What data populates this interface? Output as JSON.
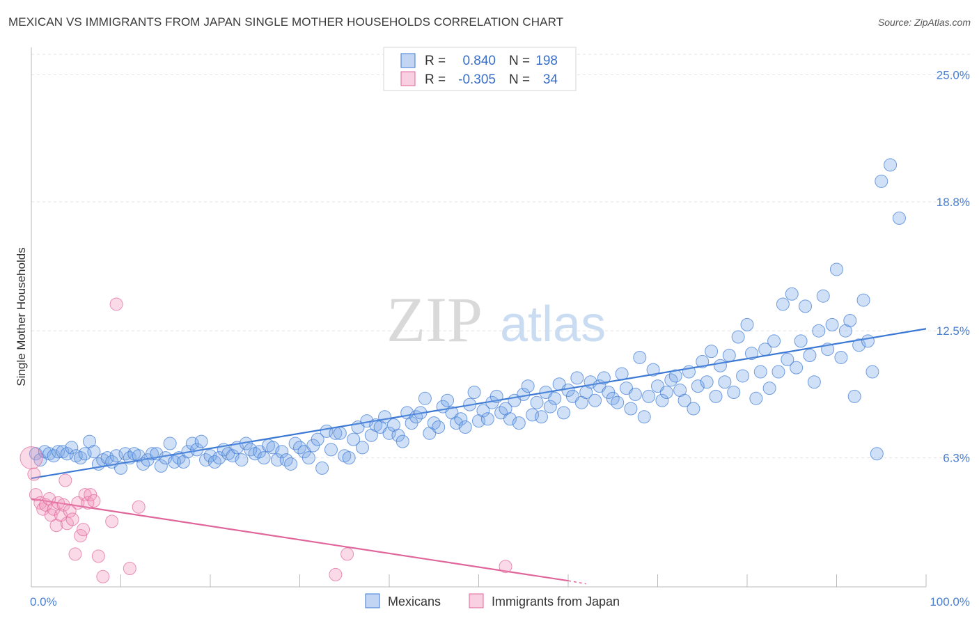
{
  "title": "MEXICAN VS IMMIGRANTS FROM JAPAN SINGLE MOTHER HOUSEHOLDS CORRELATION CHART",
  "source": "Source: ZipAtlas.com",
  "watermark": {
    "zip": "ZIP",
    "atlas": "atlas"
  },
  "colors": {
    "blue": "#3a78d4",
    "blue_fill": "rgba(120,165,230,0.35)",
    "pink": "#e0659a",
    "pink_fill": "rgba(240,150,185,0.35)",
    "tick": "#4a7fd0"
  },
  "legend": {
    "rows": [
      {
        "r_label": "R =",
        "r_value": "0.840",
        "n_label": "N =",
        "n_value": "198"
      },
      {
        "r_label": "R =",
        "r_value": "-0.305",
        "n_label": "N =",
        "n_value": "34"
      }
    ]
  },
  "bottom_legend": [
    "Mexicans",
    "Immigrants from Japan"
  ],
  "chart_data": {
    "type": "scatter",
    "ylabel": "Single Mother Households",
    "xlabel": "",
    "xlim": [
      0,
      100
    ],
    "ylim": [
      0,
      26
    ],
    "x_tick_labels": [
      "0.0%",
      "100.0%"
    ],
    "y_ticks": [
      6.3,
      12.5,
      18.8,
      25.0
    ],
    "y_tick_labels": [
      "6.3%",
      "12.5%",
      "18.8%",
      "25.0%"
    ],
    "grid": true,
    "series": [
      {
        "name": "Mexicans",
        "trend": [
          [
            0,
            5.3
          ],
          [
            100,
            12.6
          ]
        ],
        "points": [
          [
            0.5,
            6.5
          ],
          [
            1,
            6.2
          ],
          [
            1.5,
            6.6
          ],
          [
            2,
            6.5
          ],
          [
            2.5,
            6.4
          ],
          [
            3,
            6.6
          ],
          [
            3.5,
            6.6
          ],
          [
            4,
            6.5
          ],
          [
            4.5,
            6.8
          ],
          [
            5,
            6.4
          ],
          [
            5.5,
            6.3
          ],
          [
            6,
            6.5
          ],
          [
            6.5,
            7.1
          ],
          [
            7,
            6.6
          ],
          [
            7.5,
            6.0
          ],
          [
            8,
            6.2
          ],
          [
            8.5,
            6.3
          ],
          [
            9,
            6.1
          ],
          [
            9.5,
            6.4
          ],
          [
            10,
            5.8
          ],
          [
            10.5,
            6.5
          ],
          [
            11,
            6.3
          ],
          [
            11.5,
            6.5
          ],
          [
            12,
            6.4
          ],
          [
            12.5,
            6.0
          ],
          [
            13,
            6.2
          ],
          [
            13.5,
            6.5
          ],
          [
            14,
            6.5
          ],
          [
            14.5,
            5.9
          ],
          [
            15,
            6.3
          ],
          [
            15.5,
            7.0
          ],
          [
            16,
            6.1
          ],
          [
            16.5,
            6.3
          ],
          [
            17,
            6.1
          ],
          [
            17.5,
            6.6
          ],
          [
            18,
            7.0
          ],
          [
            18.5,
            6.7
          ],
          [
            19,
            7.1
          ],
          [
            19.5,
            6.2
          ],
          [
            20,
            6.4
          ],
          [
            20.5,
            6.1
          ],
          [
            21,
            6.3
          ],
          [
            21.5,
            6.7
          ],
          [
            22,
            6.5
          ],
          [
            22.5,
            6.4
          ],
          [
            23,
            6.8
          ],
          [
            23.5,
            6.2
          ],
          [
            24,
            7.0
          ],
          [
            24.5,
            6.7
          ],
          [
            25,
            6.5
          ],
          [
            25.5,
            6.6
          ],
          [
            26,
            6.3
          ],
          [
            26.5,
            6.9
          ],
          [
            27,
            6.8
          ],
          [
            27.5,
            6.2
          ],
          [
            28,
            6.6
          ],
          [
            28.5,
            6.2
          ],
          [
            29,
            6.0
          ],
          [
            29.5,
            7.0
          ],
          [
            30,
            6.8
          ],
          [
            30.5,
            6.6
          ],
          [
            31,
            6.3
          ],
          [
            31.5,
            6.9
          ],
          [
            32,
            7.2
          ],
          [
            32.5,
            5.8
          ],
          [
            33,
            7.6
          ],
          [
            33.5,
            6.7
          ],
          [
            34,
            7.5
          ],
          [
            34.5,
            7.5
          ],
          [
            35,
            6.4
          ],
          [
            35.5,
            6.3
          ],
          [
            36,
            7.2
          ],
          [
            36.5,
            7.8
          ],
          [
            37,
            6.8
          ],
          [
            37.5,
            8.1
          ],
          [
            38,
            7.4
          ],
          [
            38.5,
            7.9
          ],
          [
            39,
            7.8
          ],
          [
            39.5,
            8.3
          ],
          [
            40,
            7.5
          ],
          [
            40.5,
            7.9
          ],
          [
            41,
            7.4
          ],
          [
            41.5,
            7.1
          ],
          [
            42,
            8.5
          ],
          [
            42.5,
            8.0
          ],
          [
            43,
            8.3
          ],
          [
            43.5,
            8.5
          ],
          [
            44,
            9.2
          ],
          [
            44.5,
            7.5
          ],
          [
            45,
            8.0
          ],
          [
            45.5,
            7.8
          ],
          [
            46,
            8.8
          ],
          [
            46.5,
            9.1
          ],
          [
            47,
            8.5
          ],
          [
            47.5,
            8.0
          ],
          [
            48,
            8.2
          ],
          [
            48.5,
            7.8
          ],
          [
            49,
            8.9
          ],
          [
            49.5,
            9.5
          ],
          [
            50,
            8.1
          ],
          [
            50.5,
            8.6
          ],
          [
            51,
            8.2
          ],
          [
            51.5,
            9.0
          ],
          [
            52,
            9.3
          ],
          [
            52.5,
            8.5
          ],
          [
            53,
            8.7
          ],
          [
            53.5,
            8.2
          ],
          [
            54,
            9.1
          ],
          [
            54.5,
            8.0
          ],
          [
            55,
            9.4
          ],
          [
            55.5,
            9.8
          ],
          [
            56,
            8.4
          ],
          [
            56.5,
            9.0
          ],
          [
            57,
            8.3
          ],
          [
            57.5,
            9.5
          ],
          [
            58,
            8.8
          ],
          [
            58.5,
            9.2
          ],
          [
            59,
            9.9
          ],
          [
            59.5,
            8.5
          ],
          [
            60,
            9.6
          ],
          [
            60.5,
            9.3
          ],
          [
            61,
            10.2
          ],
          [
            61.5,
            9.0
          ],
          [
            62,
            9.5
          ],
          [
            62.5,
            10.0
          ],
          [
            63,
            9.1
          ],
          [
            63.5,
            9.8
          ],
          [
            64,
            10.2
          ],
          [
            64.5,
            9.5
          ],
          [
            65,
            9.2
          ],
          [
            65.5,
            9.0
          ],
          [
            66,
            10.4
          ],
          [
            66.5,
            9.7
          ],
          [
            67,
            8.7
          ],
          [
            67.5,
            9.4
          ],
          [
            68,
            11.2
          ],
          [
            68.5,
            8.3
          ],
          [
            69,
            9.3
          ],
          [
            69.5,
            10.6
          ],
          [
            70,
            9.8
          ],
          [
            70.5,
            9.1
          ],
          [
            71,
            9.5
          ],
          [
            71.5,
            10.1
          ],
          [
            72,
            10.3
          ],
          [
            72.5,
            9.6
          ],
          [
            73,
            9.1
          ],
          [
            73.5,
            10.5
          ],
          [
            74,
            8.7
          ],
          [
            74.5,
            9.8
          ],
          [
            75,
            11.0
          ],
          [
            75.5,
            10.0
          ],
          [
            76,
            11.5
          ],
          [
            76.5,
            9.3
          ],
          [
            77,
            10.8
          ],
          [
            77.5,
            10.0
          ],
          [
            78,
            11.3
          ],
          [
            78.5,
            9.5
          ],
          [
            79,
            12.2
          ],
          [
            79.5,
            10.3
          ],
          [
            80,
            12.8
          ],
          [
            80.5,
            11.4
          ],
          [
            81,
            9.2
          ],
          [
            81.5,
            10.5
          ],
          [
            82,
            11.6
          ],
          [
            82.5,
            9.7
          ],
          [
            83,
            12.0
          ],
          [
            83.5,
            10.5
          ],
          [
            84,
            13.8
          ],
          [
            84.5,
            11.1
          ],
          [
            85,
            14.3
          ],
          [
            85.5,
            10.7
          ],
          [
            86,
            12.0
          ],
          [
            86.5,
            13.7
          ],
          [
            87,
            11.3
          ],
          [
            87.5,
            10.0
          ],
          [
            88,
            12.5
          ],
          [
            88.5,
            14.2
          ],
          [
            89,
            11.6
          ],
          [
            89.5,
            12.8
          ],
          [
            90,
            15.5
          ],
          [
            90.5,
            11.2
          ],
          [
            91,
            12.5
          ],
          [
            91.5,
            13.0
          ],
          [
            92,
            9.3
          ],
          [
            92.5,
            11.8
          ],
          [
            93,
            14.0
          ],
          [
            93.5,
            12.0
          ],
          [
            94,
            10.5
          ],
          [
            94.5,
            6.5
          ],
          [
            95,
            19.8
          ],
          [
            96,
            20.6
          ],
          [
            97,
            18.0
          ]
        ]
      },
      {
        "name": "Immigrants from Japan",
        "trend": [
          [
            0,
            4.3
          ],
          [
            60,
            0.3
          ]
        ],
        "trend_dash": [
          [
            60,
            0.3
          ],
          [
            62,
            0.15
          ]
        ],
        "points": [
          [
            0,
            6.3
          ],
          [
            0.3,
            5.5
          ],
          [
            0.5,
            4.5
          ],
          [
            1,
            4.1
          ],
          [
            1.3,
            3.8
          ],
          [
            1.6,
            4.0
          ],
          [
            2,
            4.3
          ],
          [
            2.2,
            3.5
          ],
          [
            2.5,
            3.8
          ],
          [
            2.8,
            3.0
          ],
          [
            3,
            4.1
          ],
          [
            3.3,
            3.5
          ],
          [
            3.6,
            4.0
          ],
          [
            3.8,
            5.2
          ],
          [
            4,
            3.1
          ],
          [
            4.3,
            3.7
          ],
          [
            4.6,
            3.3
          ],
          [
            4.9,
            1.6
          ],
          [
            5.2,
            4.1
          ],
          [
            5.5,
            2.5
          ],
          [
            5.8,
            2.8
          ],
          [
            6,
            4.5
          ],
          [
            6.3,
            4.1
          ],
          [
            6.6,
            4.5
          ],
          [
            7,
            4.2
          ],
          [
            7.5,
            1.5
          ],
          [
            8,
            0.5
          ],
          [
            9,
            3.2
          ],
          [
            9.5,
            13.8
          ],
          [
            11,
            0.9
          ],
          [
            12,
            3.9
          ],
          [
            34,
            0.6
          ],
          [
            53,
            1.0
          ],
          [
            35.3,
            1.6
          ]
        ]
      }
    ]
  }
}
